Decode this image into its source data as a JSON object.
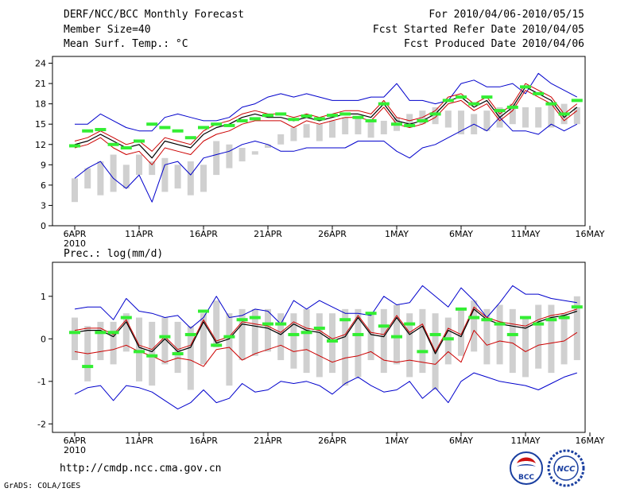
{
  "header": {
    "title": "DERF/NCC/BCC Monthly Forecast",
    "member_size": "Member Size=40",
    "variable_temp": "Mean Surf. Temp.: °C",
    "period": "For 2010/04/06-2010/05/15",
    "fcst_started": "Fcst Started Refer Date 2010/04/05",
    "fcst_produced": "Fcst Produced Date 2010/04/06"
  },
  "footer": {
    "url": "http://cmdp.ncc.cma.gov.cn",
    "grads": "GrADS: COLA/IGES",
    "logo_left": "BCC",
    "logo_right": "NCC"
  },
  "colors": {
    "mean": "#000000",
    "median": "#cc0000",
    "range": "#0000cc",
    "obs": "#33ee33",
    "box": "#d0d0d0"
  },
  "chart_data": [
    {
      "type": "line",
      "title": "Mean Surf. Temp.: °C",
      "ylabel": "°C",
      "ylim": [
        0,
        25
      ],
      "yticks": [
        0,
        3,
        6,
        9,
        12,
        15,
        18,
        21,
        24
      ],
      "x_tick_positions": [
        0,
        5,
        10,
        15,
        20,
        25,
        30,
        35,
        40
      ],
      "x_tick_labels": [
        "6APR",
        "11APR",
        "16APR",
        "21APR",
        "26APR",
        "1MAY",
        "6MAY",
        "11MAY",
        "16MAY"
      ],
      "x_year_label": "2010",
      "series": [
        {
          "name": "max",
          "values": [
            7,
            8.5,
            9.5,
            10.5,
            9,
            10.5,
            9.5,
            10,
            9,
            9.5,
            9,
            12.5,
            12,
            11.5,
            11,
            12,
            13.5,
            14.5,
            15,
            15,
            15.5,
            16,
            16,
            15.5,
            15.5,
            16,
            16.5,
            17,
            17.5,
            17,
            17,
            16.5,
            17,
            17.5,
            18,
            17.5,
            17.5,
            18,
            18,
            17.5
          ]
        },
        {
          "name": "min",
          "values": [
            3.5,
            5.5,
            4.5,
            5,
            5.5,
            7.5,
            7.5,
            5,
            5.5,
            4.5,
            5,
            7.5,
            8.5,
            9.5,
            10.5,
            11.5,
            12,
            12.5,
            13,
            12.5,
            13,
            13.5,
            13.5,
            13,
            13.5,
            14,
            14.5,
            15,
            15,
            14.5,
            13.5,
            13.5,
            14,
            14.5,
            15,
            14.5,
            14.5,
            14.5,
            15,
            15
          ]
        },
        {
          "name": "ens_max",
          "values": [
            15,
            15,
            16.5,
            15.5,
            14.5,
            14,
            14,
            16,
            16.5,
            16,
            15.5,
            15.5,
            16,
            17.5,
            18,
            19,
            19.5,
            19,
            19.5,
            19,
            18.5,
            18.5,
            18.5,
            19,
            19,
            21,
            18.5,
            18.5,
            18,
            18.5,
            21,
            21.5,
            20.5,
            20.5,
            21,
            19.5,
            22.5,
            21,
            20,
            19
          ]
        },
        {
          "name": "ens_min",
          "values": [
            7,
            8.5,
            9.5,
            7,
            5.5,
            7.5,
            3.5,
            9,
            9.5,
            7.5,
            10,
            10.5,
            11,
            12,
            12.5,
            12,
            11,
            11,
            11.5,
            11.5,
            11.5,
            11.5,
            12.5,
            12.5,
            12.5,
            11,
            10,
            11.5,
            12,
            13,
            14,
            15,
            14,
            16,
            14,
            14,
            13.5,
            15,
            14,
            15
          ]
        },
        {
          "name": "median",
          "values": [
            11.5,
            12,
            13,
            11.5,
            10.5,
            11,
            9,
            11.5,
            11,
            10.5,
            12.5,
            13.5,
            14,
            15,
            15.5,
            15.5,
            15.5,
            14.5,
            15.5,
            15,
            15.5,
            16,
            16,
            15.5,
            17.5,
            15,
            14.5,
            15,
            16,
            18,
            18.5,
            17,
            18,
            15.5,
            17,
            20,
            19,
            18,
            15.5,
            17
          ]
        },
        {
          "name": "ens_mean",
          "values": [
            12,
            12.5,
            13.5,
            12.5,
            11.5,
            12,
            10,
            12.5,
            12,
            11.5,
            13.5,
            14.5,
            15,
            16,
            16.5,
            16,
            16,
            15.5,
            16,
            15.5,
            16,
            16.5,
            16.5,
            16,
            18,
            15.5,
            15,
            15.5,
            16.5,
            18.5,
            19,
            17.5,
            18.5,
            16,
            17.5,
            20.5,
            19.5,
            18.5,
            16,
            17.5
          ]
        },
        {
          "name": "upper",
          "values": [
            12.5,
            13,
            14,
            13,
            12,
            12.5,
            11,
            13,
            12.5,
            12,
            14,
            15,
            15.5,
            16.5,
            17,
            16.5,
            16.5,
            16,
            16.5,
            16,
            16.5,
            17,
            17,
            16.5,
            18.5,
            16,
            15.5,
            16,
            17,
            19,
            19.5,
            18,
            19,
            16.5,
            18,
            21,
            20,
            19,
            16.5,
            18
          ]
        },
        {
          "name": "observed",
          "values": [
            11.8,
            14,
            14.2,
            12,
            11.5,
            12.5,
            15,
            14.5,
            14,
            13,
            14.5,
            15,
            14.8,
            15.5,
            15.8,
            16.3,
            16.5,
            15.7,
            16.2,
            15.8,
            16.3,
            16.5,
            16,
            15.5,
            18,
            15,
            14.8,
            15.5,
            16.5,
            18.5,
            19,
            18,
            19,
            17,
            17.5,
            20.5,
            19.5,
            18,
            16.5,
            18.5
          ]
        }
      ]
    },
    {
      "type": "line",
      "title": "Prec.: log(mm/d)",
      "ylabel": "log(mm/d)",
      "ylim": [
        -2.2,
        1.8
      ],
      "yticks": [
        -2,
        -1,
        0,
        1
      ],
      "x_tick_positions": [
        0,
        5,
        10,
        15,
        20,
        25,
        30,
        35,
        40
      ],
      "x_tick_labels": [
        "6APR",
        "11APR",
        "16APR",
        "21APR",
        "26APR",
        "1MAY",
        "6MAY",
        "11MAY",
        "16MAY"
      ],
      "x_year_label": "2010",
      "series": [
        {
          "name": "max",
          "values": [
            0.5,
            0.3,
            0.4,
            0.4,
            0.6,
            0.5,
            0.4,
            0.5,
            0.4,
            0.3,
            0.6,
            0.9,
            0.6,
            0.7,
            0.7,
            0.7,
            0.6,
            0.6,
            0.7,
            0.6,
            0.6,
            0.7,
            0.7,
            0.6,
            0.7,
            0.8,
            0.6,
            0.7,
            0.6,
            0.5,
            0.7,
            0.9,
            0.7,
            0.8,
            0.7,
            0.5,
            0.8,
            0.8,
            0.6,
            1.0
          ]
        },
        {
          "name": "min",
          "values": [
            -0.5,
            -1.0,
            -0.5,
            -0.6,
            -0.3,
            -1.0,
            -1.1,
            -0.6,
            -0.8,
            -1.2,
            -0.6,
            -0.2,
            -1.1,
            -0.5,
            -0.4,
            -0.3,
            -0.5,
            -0.7,
            -0.8,
            -0.9,
            -0.8,
            -1.1,
            -0.9,
            -0.5,
            -0.8,
            -0.6,
            -0.9,
            -0.8,
            -1.2,
            -0.6,
            -0.4,
            -0.3,
            -0.6,
            -0.6,
            -0.8,
            -0.9,
            -0.7,
            -0.8,
            -0.6,
            -0.5
          ]
        },
        {
          "name": "ens_max",
          "values": [
            0.7,
            0.75,
            0.75,
            0.45,
            0.95,
            0.65,
            0.6,
            0.5,
            0.55,
            0.25,
            0.5,
            1.0,
            0.5,
            0.55,
            0.7,
            0.65,
            0.35,
            0.9,
            0.7,
            0.9,
            0.75,
            0.6,
            0.6,
            0.55,
            1.0,
            0.8,
            0.85,
            1.25,
            1.0,
            0.75,
            1.2,
            0.9,
            0.5,
            0.85,
            1.25,
            1.05,
            1.05,
            0.95,
            0.9,
            0.85
          ]
        },
        {
          "name": "ens_min",
          "values": [
            -1.3,
            -1.15,
            -1.1,
            -1.45,
            -1.1,
            -1.15,
            -1.25,
            -1.45,
            -1.65,
            -1.5,
            -1.2,
            -1.5,
            -1.4,
            -1.05,
            -1.25,
            -1.2,
            -1.0,
            -1.05,
            -1.0,
            -1.1,
            -1.3,
            -1.05,
            -0.9,
            -1.1,
            -1.25,
            -1.2,
            -1.0,
            -1.4,
            -1.15,
            -1.5,
            -1.0,
            -0.8,
            -0.9,
            -1.0,
            -1.05,
            -1.1,
            -1.2,
            -1.05,
            -0.9,
            -0.8
          ]
        },
        {
          "name": "median",
          "values": [
            -0.3,
            -0.35,
            -0.3,
            -0.25,
            -0.15,
            -0.3,
            -0.4,
            -0.55,
            -0.45,
            -0.5,
            -0.65,
            -0.25,
            -0.2,
            -0.5,
            -0.35,
            -0.25,
            -0.15,
            -0.3,
            -0.25,
            -0.4,
            -0.55,
            -0.45,
            -0.4,
            -0.3,
            -0.5,
            -0.55,
            -0.5,
            -0.55,
            -0.6,
            -0.3,
            -0.55,
            0.2,
            -0.15,
            -0.05,
            -0.1,
            -0.3,
            -0.15,
            -0.1,
            -0.05,
            0.15
          ]
        },
        {
          "name": "ens_mean",
          "values": [
            0.15,
            0.2,
            0.2,
            0.05,
            0.4,
            -0.2,
            -0.3,
            0.0,
            -0.3,
            -0.2,
            0.4,
            -0.1,
            0.0,
            0.35,
            0.3,
            0.25,
            0.1,
            0.35,
            0.2,
            0.15,
            -0.05,
            0.05,
            0.5,
            0.1,
            0.05,
            0.5,
            0.1,
            0.3,
            -0.35,
            0.2,
            0.05,
            0.7,
            0.45,
            0.35,
            0.3,
            0.25,
            0.4,
            0.5,
            0.55,
            0.65
          ]
        },
        {
          "name": "upper",
          "values": [
            0.2,
            0.25,
            0.25,
            0.1,
            0.45,
            -0.15,
            -0.25,
            0.05,
            -0.25,
            -0.15,
            0.45,
            -0.05,
            0.05,
            0.4,
            0.35,
            0.3,
            0.15,
            0.4,
            0.25,
            0.2,
            0.0,
            0.1,
            0.55,
            0.15,
            0.1,
            0.55,
            0.15,
            0.35,
            -0.3,
            0.25,
            0.1,
            0.75,
            0.5,
            0.4,
            0.35,
            0.3,
            0.45,
            0.55,
            0.6,
            0.7
          ]
        },
        {
          "name": "observed",
          "values": [
            0.15,
            -0.65,
            0.15,
            0.15,
            0.5,
            -0.3,
            -0.4,
            0.05,
            -0.35,
            0.1,
            0.65,
            -0.15,
            0.05,
            0.45,
            0.5,
            0.35,
            0.35,
            0.1,
            0.15,
            0.25,
            -0.05,
            0.45,
            0.1,
            0.6,
            0.3,
            0.05,
            0.35,
            -0.3,
            0.1,
            0.0,
            0.7,
            0.5,
            0.45,
            0.35,
            0.1,
            0.5,
            0.35,
            0.45,
            0.5,
            0.75
          ]
        }
      ]
    }
  ]
}
